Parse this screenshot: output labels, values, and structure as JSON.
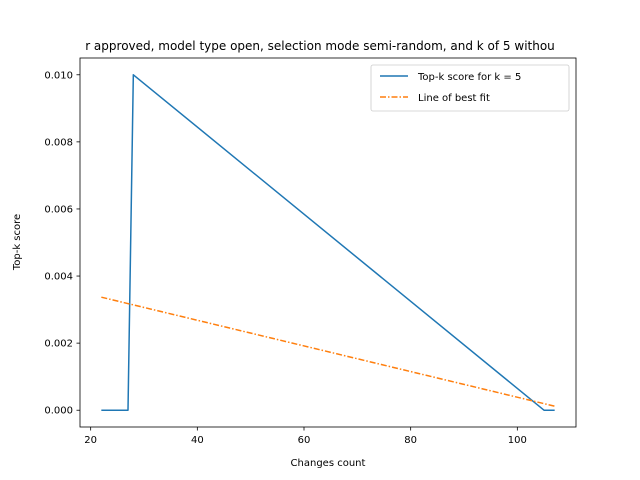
{
  "chart_data": {
    "type": "line",
    "title": "r approved, model type open, selection mode semi-random, and k of 5 withou",
    "xlabel": "Changes count",
    "ylabel": "Top-k score",
    "xlim": [
      18,
      111
    ],
    "ylim": [
      -0.0005,
      0.0105
    ],
    "xticks": [
      20,
      40,
      60,
      80,
      100
    ],
    "yticks": [
      0.0,
      0.002,
      0.004,
      0.006,
      0.008,
      0.01
    ],
    "xtick_labels": [
      "20",
      "40",
      "60",
      "80",
      "100"
    ],
    "ytick_labels": [
      "0.000",
      "0.002",
      "0.004",
      "0.006",
      "0.008",
      "0.010"
    ],
    "grid": false,
    "legend_position": "top-right",
    "series": [
      {
        "name": "Top-k score for k = 5",
        "color": "#1f77b4",
        "style": "solid",
        "x": [
          22,
          27,
          28,
          105,
          107
        ],
        "y": [
          0.0,
          0.0,
          0.01,
          0.0,
          0.0
        ]
      },
      {
        "name": "Line of best fit",
        "color": "#ff7f0e",
        "style": "dashdot",
        "x": [
          22,
          107
        ],
        "y": [
          0.00337,
          0.00012
        ]
      }
    ]
  }
}
